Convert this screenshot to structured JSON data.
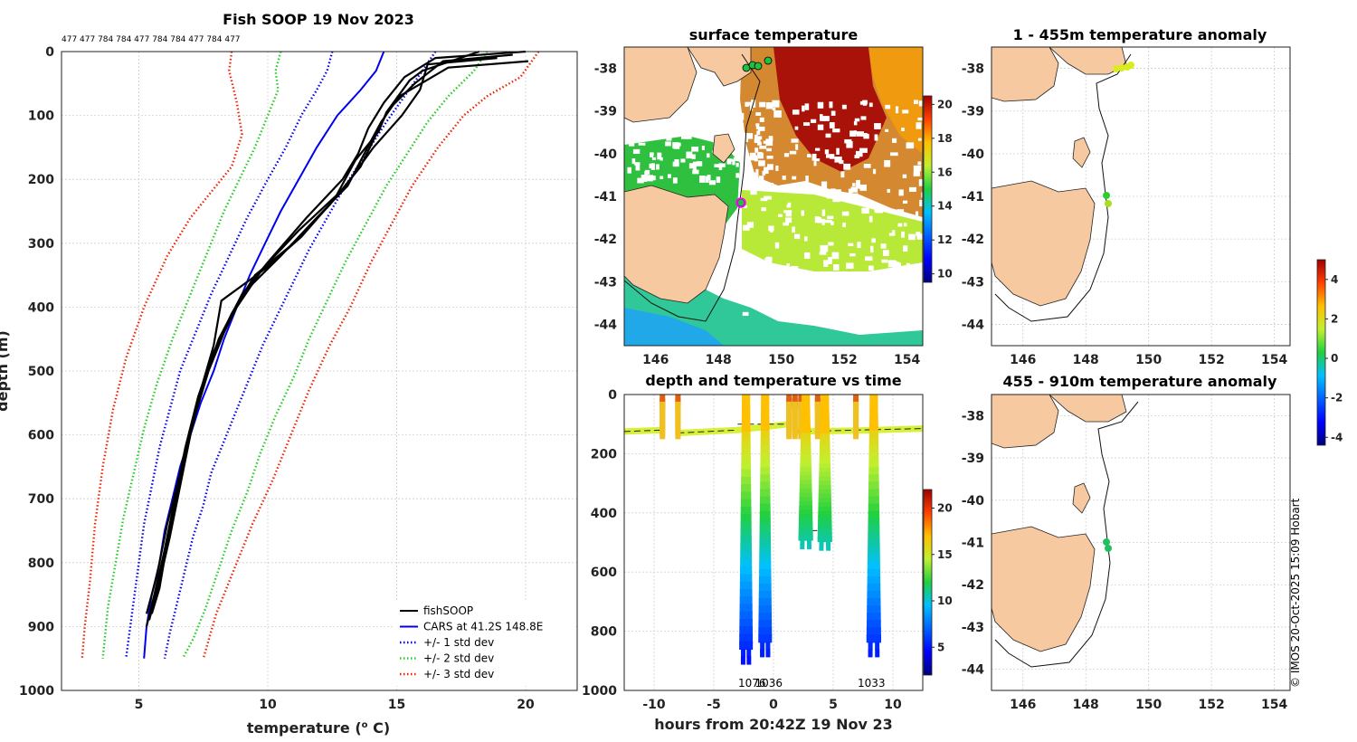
{
  "chart_data": [
    {
      "type": "line",
      "id": "profile",
      "title": "Fish SOOP 19 Nov 2023",
      "top_annotation": "477 477 784 784 477 784 784 477 784 477",
      "xlabel": "temperature (",
      "xlabel_sup": "o",
      "xlabel_end": " C)",
      "ylabel": "depth (m)",
      "xlim": [
        2,
        22
      ],
      "ylim": [
        1000,
        0
      ],
      "xticks": [
        5,
        10,
        15,
        20
      ],
      "yticks": [
        0,
        100,
        200,
        300,
        400,
        500,
        600,
        700,
        800,
        900,
        1000
      ],
      "legend": [
        {
          "label": "fishSOOP",
          "color": "#000000",
          "dash": "solid"
        },
        {
          "label": "CARS at 41.2S 148.8E",
          "color": "#0000ee",
          "dash": "solid"
        },
        {
          "label": "+/- 1 std dev",
          "color": "#0000ee",
          "dash": "dot"
        },
        {
          "label": "+/- 2 std dev",
          "color": "#22cc22",
          "dash": "dot"
        },
        {
          "label": "+/- 3 std dev",
          "color": "#ee2200",
          "dash": "dot"
        }
      ],
      "series": [
        {
          "name": "CARS",
          "color": "#0000ee",
          "dash": "solid",
          "points": [
            [
              14.5,
              0
            ],
            [
              14.2,
              30
            ],
            [
              13.6,
              60
            ],
            [
              12.7,
              100
            ],
            [
              11.9,
              150
            ],
            [
              11.2,
              200
            ],
            [
              10.5,
              250
            ],
            [
              9.9,
              300
            ],
            [
              9.3,
              350
            ],
            [
              8.8,
              400
            ],
            [
              8.3,
              450
            ],
            [
              7.9,
              500
            ],
            [
              7.4,
              550
            ],
            [
              7.0,
              600
            ],
            [
              6.6,
              650
            ],
            [
              6.3,
              700
            ],
            [
              6.0,
              750
            ],
            [
              5.8,
              800
            ],
            [
              5.5,
              850
            ],
            [
              5.3,
              900
            ],
            [
              5.2,
              950
            ]
          ]
        },
        {
          "name": "+1 std",
          "color": "#0000ee",
          "dash": "dot",
          "points": [
            [
              16.5,
              0
            ],
            [
              16.0,
              30
            ],
            [
              15.3,
              70
            ],
            [
              14.6,
              110
            ],
            [
              13.8,
              160
            ],
            [
              13.0,
              210
            ],
            [
              12.3,
              260
            ],
            [
              11.6,
              310
            ],
            [
              11.0,
              360
            ],
            [
              10.4,
              410
            ],
            [
              9.8,
              460
            ],
            [
              9.3,
              510
            ],
            [
              8.8,
              560
            ],
            [
              8.3,
              610
            ],
            [
              7.8,
              660
            ],
            [
              7.5,
              710
            ],
            [
              7.1,
              760
            ],
            [
              6.8,
              810
            ],
            [
              6.5,
              860
            ],
            [
              6.2,
              910
            ],
            [
              6.0,
              950
            ]
          ]
        },
        {
          "name": "-1 std",
          "color": "#0000ee",
          "dash": "dot",
          "points": [
            [
              12.5,
              0
            ],
            [
              12.3,
              30
            ],
            [
              11.9,
              60
            ],
            [
              11.3,
              100
            ],
            [
              10.7,
              150
            ],
            [
              10.0,
              200
            ],
            [
              9.2,
              260
            ],
            [
              8.5,
              320
            ],
            [
              7.8,
              380
            ],
            [
              7.2,
              440
            ],
            [
              6.6,
              500
            ],
            [
              6.2,
              560
            ],
            [
              5.8,
              620
            ],
            [
              5.5,
              680
            ],
            [
              5.2,
              740
            ],
            [
              5.0,
              800
            ],
            [
              4.8,
              860
            ],
            [
              4.6,
              920
            ],
            [
              4.5,
              950
            ]
          ]
        },
        {
          "name": "+2 std",
          "color": "#22cc22",
          "dash": "dot",
          "points": [
            [
              18.5,
              0
            ],
            [
              18.0,
              30
            ],
            [
              17.0,
              70
            ],
            [
              16.2,
              110
            ],
            [
              15.4,
              160
            ],
            [
              14.6,
              210
            ],
            [
              13.8,
              270
            ],
            [
              13.0,
              330
            ],
            [
              12.3,
              390
            ],
            [
              11.6,
              450
            ],
            [
              11.0,
              510
            ],
            [
              10.3,
              570
            ],
            [
              9.7,
              630
            ],
            [
              9.2,
              690
            ],
            [
              8.6,
              750
            ],
            [
              8.1,
              810
            ],
            [
              7.6,
              870
            ],
            [
              7.1,
              920
            ],
            [
              6.7,
              950
            ]
          ]
        },
        {
          "name": "-2 std",
          "color": "#22cc22",
          "dash": "dot",
          "points": [
            [
              10.5,
              0
            ],
            [
              10.3,
              30
            ],
            [
              10.4,
              60
            ],
            [
              10.0,
              100
            ],
            [
              9.5,
              150
            ],
            [
              8.9,
              200
            ],
            [
              8.3,
              250
            ],
            [
              7.7,
              310
            ],
            [
              7.0,
              380
            ],
            [
              6.3,
              450
            ],
            [
              5.7,
              520
            ],
            [
              5.2,
              590
            ],
            [
              4.8,
              660
            ],
            [
              4.4,
              730
            ],
            [
              4.1,
              800
            ],
            [
              3.8,
              870
            ],
            [
              3.6,
              950
            ]
          ]
        },
        {
          "name": "+3 std",
          "color": "#ee2200",
          "dash": "dot",
          "points": [
            [
              20.5,
              0
            ],
            [
              19.8,
              40
            ],
            [
              18.5,
              70
            ],
            [
              17.6,
              100
            ],
            [
              16.6,
              150
            ],
            [
              15.6,
              210
            ],
            [
              14.8,
              270
            ],
            [
              14.0,
              330
            ],
            [
              13.2,
              400
            ],
            [
              12.4,
              460
            ],
            [
              11.6,
              530
            ],
            [
              10.9,
              600
            ],
            [
              10.2,
              670
            ],
            [
              9.4,
              740
            ],
            [
              8.7,
              810
            ],
            [
              8.0,
              880
            ],
            [
              7.5,
              950
            ]
          ]
        },
        {
          "name": "-3 std",
          "color": "#ee2200",
          "dash": "dot",
          "points": [
            [
              8.6,
              0
            ],
            [
              8.5,
              30
            ],
            [
              8.8,
              80
            ],
            [
              9.0,
              130
            ],
            [
              8.6,
              180
            ],
            [
              7.8,
              220
            ],
            [
              7.0,
              260
            ],
            [
              6.1,
              320
            ],
            [
              5.2,
              400
            ],
            [
              4.5,
              480
            ],
            [
              4.0,
              560
            ],
            [
              3.6,
              650
            ],
            [
              3.3,
              740
            ],
            [
              3.1,
              830
            ],
            [
              2.9,
              900
            ],
            [
              2.8,
              950
            ]
          ]
        }
      ],
      "profiles": [
        [
          [
            20,
            0
          ],
          [
            16.5,
            10
          ],
          [
            15.3,
            40
          ],
          [
            14.5,
            80
          ],
          [
            13.9,
            120
          ],
          [
            13.5,
            160
          ],
          [
            12.9,
            200
          ],
          [
            11.5,
            260
          ],
          [
            10.0,
            330
          ],
          [
            9.0,
            380
          ],
          [
            8.1,
            450
          ],
          [
            7.5,
            520
          ],
          [
            7.0,
            600
          ],
          [
            6.6,
            680
          ],
          [
            6.2,
            760
          ],
          [
            5.8,
            830
          ],
          [
            5.4,
            890
          ]
        ],
        [
          [
            19.5,
            5
          ],
          [
            16.8,
            15
          ],
          [
            15.7,
            50
          ],
          [
            14.7,
            90
          ],
          [
            14.2,
            130
          ],
          [
            13.6,
            180
          ],
          [
            12.8,
            220
          ],
          [
            11.2,
            280
          ],
          [
            9.8,
            340
          ],
          [
            8.8,
            400
          ],
          [
            7.9,
            470
          ],
          [
            7.3,
            540
          ],
          [
            6.8,
            620
          ],
          [
            6.4,
            700
          ],
          [
            6.0,
            780
          ],
          [
            5.6,
            850
          ],
          [
            5.3,
            900
          ]
        ],
        [
          [
            18.9,
            10
          ],
          [
            16.2,
            20
          ],
          [
            15.9,
            60
          ],
          [
            15.2,
            100
          ],
          [
            14.1,
            150
          ],
          [
            13.2,
            200
          ],
          [
            12.4,
            240
          ],
          [
            11.0,
            300
          ],
          [
            9.5,
            350
          ],
          [
            8.6,
            410
          ],
          [
            7.8,
            480
          ],
          [
            7.2,
            560
          ],
          [
            6.7,
            640
          ],
          [
            6.3,
            720
          ],
          [
            5.9,
            800
          ],
          [
            5.5,
            870
          ]
        ],
        [
          [
            20.1,
            15
          ],
          [
            17.0,
            25
          ],
          [
            15.1,
            70
          ],
          [
            14.4,
            110
          ],
          [
            14.0,
            140
          ],
          [
            13.1,
            210
          ],
          [
            11.9,
            260
          ],
          [
            10.5,
            320
          ],
          [
            9.0,
            380
          ],
          [
            8.3,
            440
          ],
          [
            7.7,
            500
          ],
          [
            7.1,
            580
          ],
          [
            6.6,
            660
          ],
          [
            6.1,
            740
          ],
          [
            5.7,
            820
          ],
          [
            5.3,
            880
          ]
        ],
        [
          [
            18.2,
            0
          ],
          [
            16.0,
            30
          ],
          [
            15.5,
            45
          ],
          [
            14.6,
            95
          ],
          [
            14.3,
            125
          ],
          [
            13.4,
            170
          ],
          [
            12.6,
            230
          ],
          [
            11.3,
            290
          ],
          [
            9.9,
            340
          ],
          [
            8.2,
            390
          ],
          [
            7.9,
            460
          ],
          [
            7.4,
            530
          ],
          [
            6.9,
            610
          ],
          [
            6.5,
            690
          ],
          [
            6.1,
            770
          ],
          [
            5.8,
            840
          ],
          [
            5.5,
            880
          ]
        ]
      ]
    },
    {
      "type": "heatmap",
      "id": "sst_map",
      "title": "surface temperature",
      "xlim": [
        145,
        154.5
      ],
      "ylim": [
        -44.5,
        -37.5
      ],
      "xticks": [
        146,
        148,
        150,
        152,
        154
      ],
      "yticks": [
        -38,
        -39,
        -40,
        -41,
        -42,
        -43,
        -44
      ],
      "colorbar_ticks": [
        10,
        12,
        14,
        16,
        18,
        20
      ],
      "colorbar_range": [
        9.5,
        20.5
      ]
    },
    {
      "type": "scatter",
      "id": "time_depth",
      "title": "depth and temperature vs time",
      "xlabel": "hours from 20:42Z 19 Nov 23",
      "xlim": [
        -12.5,
        12.5
      ],
      "ylim": [
        1000,
        0
      ],
      "xticks": [
        -10,
        -5,
        0,
        5,
        10
      ],
      "yticks": [
        0,
        200,
        400,
        600,
        800,
        1000
      ],
      "colorbar_ticks": [
        5,
        10,
        15,
        20
      ],
      "colorbar_range": [
        2,
        22
      ],
      "dive_labels": [
        {
          "hour": -1.8,
          "text": "1076"
        },
        {
          "hour": -0.4,
          "text": "1036"
        },
        {
          "hour": 8.2,
          "text": "1033"
        }
      ],
      "dives": [
        {
          "hour": -2.3,
          "max_depth": 910
        },
        {
          "hour": -0.7,
          "max_depth": 885
        },
        {
          "hour": 2.7,
          "max_depth": 520
        },
        {
          "hour": 4.3,
          "max_depth": 525
        },
        {
          "hour": 8.4,
          "max_depth": 885
        }
      ]
    },
    {
      "type": "scatter",
      "id": "anom_top",
      "title": "1 - 455m temperature anomaly",
      "xlim": [
        145,
        154.5
      ],
      "ylim": [
        -44.5,
        -37.5
      ],
      "xticks": [
        146,
        148,
        150,
        152,
        154
      ],
      "yticks": [
        -38,
        -39,
        -40,
        -41,
        -42,
        -43,
        -44
      ]
    },
    {
      "type": "scatter",
      "id": "anom_bottom",
      "title": "455 - 910m temperature anomaly",
      "xlim": [
        145,
        154.5
      ],
      "ylim": [
        -44.5,
        -37.5
      ],
      "xticks": [
        146,
        148,
        150,
        152,
        154
      ],
      "yticks": [
        -38,
        -39,
        -40,
        -41,
        -42,
        -43,
        -44
      ]
    },
    {
      "type": "colorbar",
      "id": "anom_colorbar",
      "range": [
        -4.4,
        5
      ],
      "ticks": [
        4,
        2,
        0,
        -2,
        -4
      ]
    }
  ],
  "credit": "© IMOS 20-Oct-2025 15:09 Hobart"
}
